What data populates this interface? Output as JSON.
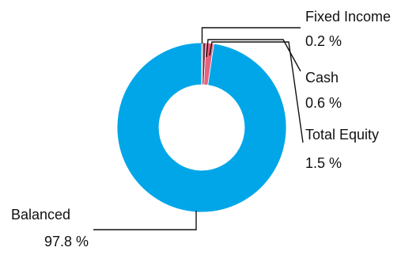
{
  "chart_data": {
    "type": "pie",
    "variant": "donut",
    "title": "",
    "slices": [
      {
        "name": "Fixed Income",
        "value": 0.2,
        "value_label": "0.2 %",
        "color": "#5b5b5b"
      },
      {
        "name": "Cash",
        "value": 0.6,
        "value_label": "0.6 %",
        "color": "#7a2a4a"
      },
      {
        "name": "Total Equity",
        "value": 1.5,
        "value_label": "1.5 %",
        "color": "#e8617f"
      },
      {
        "name": "Balanced",
        "value": 97.8,
        "value_label": "97.8 %",
        "color": "#00a6e8"
      }
    ],
    "legend": "none"
  }
}
